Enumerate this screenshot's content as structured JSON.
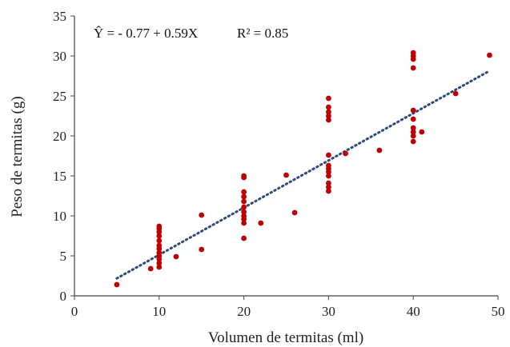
{
  "chart_data": {
    "type": "scatter",
    "xlabel": "Volumen de termitas (ml)",
    "ylabel": "Peso de termitas (g)",
    "xlim": [
      0,
      50
    ],
    "ylim": [
      0,
      35
    ],
    "xticks": [
      0,
      10,
      20,
      30,
      40,
      50
    ],
    "yticks": [
      0,
      5,
      10,
      15,
      20,
      25,
      30,
      35
    ],
    "xtick_labels": [
      "0",
      "10",
      "20",
      "30",
      "40",
      "50"
    ],
    "ytick_labels": [
      "0",
      "5",
      "10",
      "15",
      "20",
      "25",
      "30",
      "35"
    ],
    "grid": false,
    "annotation": {
      "equation": "Ŷ = - 0.77 + 0.59X",
      "r2": "R² = 0.85"
    },
    "trendline": {
      "style": "dotted",
      "intercept": -0.77,
      "slope": 0.59,
      "x_range": [
        5,
        49
      ],
      "color": "#2f4a7a"
    },
    "marker_color": "#c00000",
    "points": [
      [
        5,
        1.4
      ],
      [
        9,
        3.4
      ],
      [
        10,
        3.6
      ],
      [
        10,
        4.1
      ],
      [
        10,
        4.6
      ],
      [
        10,
        5.0
      ],
      [
        10,
        5.4
      ],
      [
        10,
        5.9
      ],
      [
        10,
        6.3
      ],
      [
        10,
        6.9
      ],
      [
        10,
        7.5
      ],
      [
        10,
        8.0
      ],
      [
        10,
        8.4
      ],
      [
        10,
        8.7
      ],
      [
        12,
        4.9
      ],
      [
        15,
        5.8
      ],
      [
        15,
        10.1
      ],
      [
        20,
        7.2
      ],
      [
        20,
        9.1
      ],
      [
        20,
        9.6
      ],
      [
        20,
        10.0
      ],
      [
        20,
        10.5
      ],
      [
        20,
        11.1
      ],
      [
        20,
        11.8
      ],
      [
        20,
        12.4
      ],
      [
        20,
        13.0
      ],
      [
        20,
        14.8
      ],
      [
        20,
        15.0
      ],
      [
        22,
        9.1
      ],
      [
        25,
        15.1
      ],
      [
        26,
        10.4
      ],
      [
        30,
        13.1
      ],
      [
        30,
        13.6
      ],
      [
        30,
        14.1
      ],
      [
        30,
        15.0
      ],
      [
        30,
        15.5
      ],
      [
        30,
        15.9
      ],
      [
        30,
        16.3
      ],
      [
        30,
        17.6
      ],
      [
        30,
        22.0
      ],
      [
        30,
        22.5
      ],
      [
        30,
        23.0
      ],
      [
        30,
        23.6
      ],
      [
        30,
        24.7
      ],
      [
        32,
        17.8
      ],
      [
        36,
        18.2
      ],
      [
        40,
        19.3
      ],
      [
        40,
        20.0
      ],
      [
        40,
        20.5
      ],
      [
        40,
        21.0
      ],
      [
        40,
        22.1
      ],
      [
        40,
        23.2
      ],
      [
        40,
        28.5
      ],
      [
        40,
        29.6
      ],
      [
        40,
        30.0
      ],
      [
        40,
        30.4
      ],
      [
        41,
        20.5
      ],
      [
        45,
        25.3
      ],
      [
        49,
        30.1
      ]
    ]
  }
}
